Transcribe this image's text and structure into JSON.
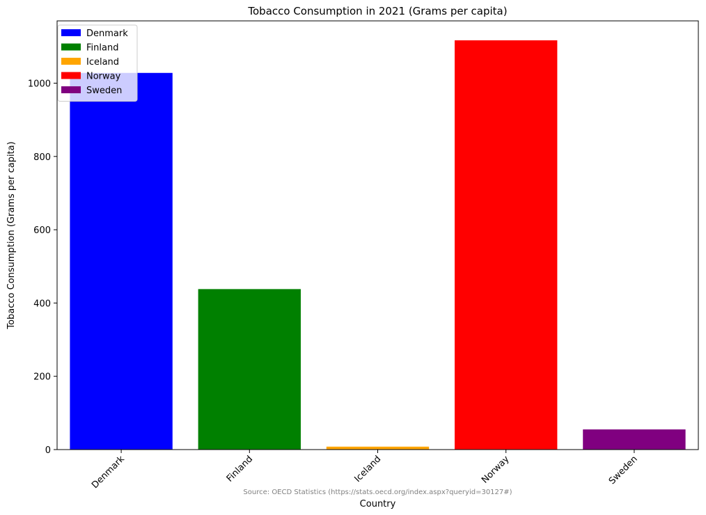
{
  "chart_data": {
    "type": "bar",
    "title": "Tobacco Consumption in 2021 (Grams per capita)",
    "xlabel": "Country",
    "ylabel": "Tobacco Consumption (Grams per capita)",
    "categories": [
      "Denmark",
      "Finland",
      "Iceland",
      "Norway",
      "Sweden"
    ],
    "values": [
      1028,
      438,
      8,
      1117,
      55
    ],
    "colors": [
      "#0000ff",
      "#008000",
      "#ffa500",
      "#ff0000",
      "#800080"
    ],
    "ylim": [
      0,
      1170
    ],
    "yticks": [
      0,
      200,
      400,
      600,
      800,
      1000
    ],
    "grid": false,
    "legend": {
      "placement": "top-left",
      "entries": [
        "Denmark",
        "Finland",
        "Iceland",
        "Norway",
        "Sweden"
      ]
    },
    "source_note": "Source: OECD Statistics (https://stats.oecd.org/index.aspx?queryid=30127#)"
  }
}
